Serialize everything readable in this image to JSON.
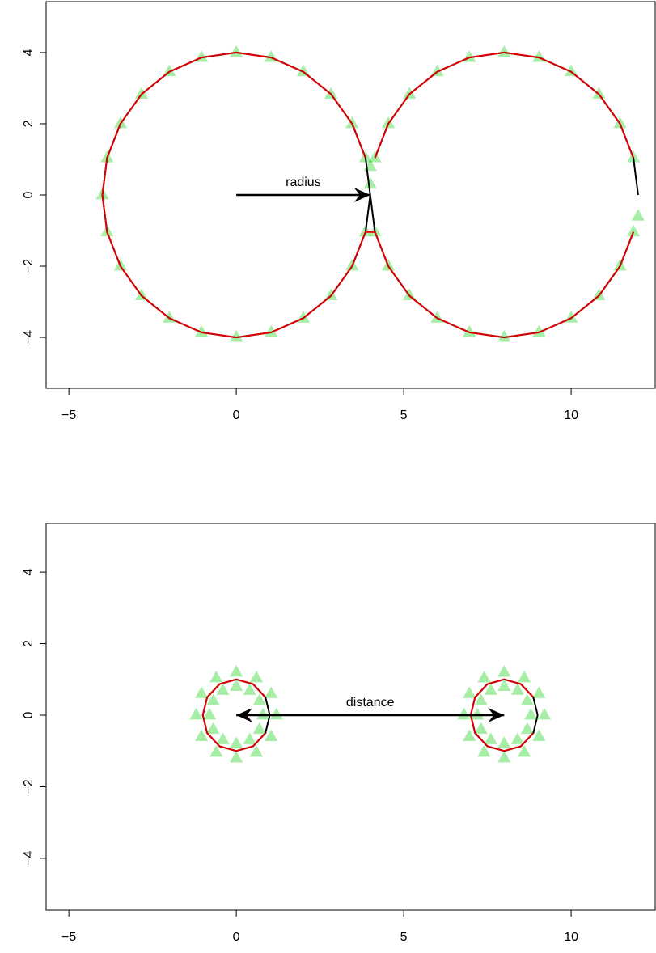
{
  "chart_data": [
    {
      "type": "scatter",
      "xlim": [
        -5.68,
        12.51
      ],
      "ylim": [
        -5.43,
        5.43
      ],
      "xticks": [
        {
          "value": -5,
          "label": "−5"
        },
        0,
        5,
        10
      ],
      "yticks": [
        {
          "value": -4,
          "label": "−4"
        },
        {
          "value": -2,
          "label": "−2"
        },
        0,
        2,
        4
      ],
      "series": [
        {
          "style": "points",
          "color": "#00cc00",
          "x": [
            4,
            3.86,
            3.46,
            2.83,
            2,
            1.04,
            0,
            -1.04,
            -2,
            -2.83,
            -3.46,
            -3.86,
            -4,
            -3.86,
            -3.46,
            -2.83,
            -2,
            -1.04,
            0,
            1.04,
            2,
            2.83,
            3.46,
            3.86,
            12,
            11.86,
            11.46,
            10.83,
            10,
            9.04,
            8,
            6.96,
            6,
            5.17,
            4.54,
            4.14,
            4,
            4.14,
            4.54,
            5.17,
            6,
            6.96,
            8,
            9.04,
            10,
            10.83,
            11.46,
            11.86
          ],
          "y": [
            0.3,
            1.04,
            2,
            2.83,
            3.46,
            3.86,
            4,
            3.86,
            3.46,
            2.83,
            2,
            1.04,
            0,
            -1.04,
            -2,
            -2.83,
            -3.46,
            -3.86,
            -4,
            -3.86,
            -3.46,
            -2.83,
            -2,
            -1.04,
            -0.6,
            1.04,
            2,
            2.83,
            3.46,
            3.86,
            4,
            3.86,
            3.46,
            2.83,
            2,
            1.04,
            0.8,
            -1.04,
            -2,
            -2.83,
            -3.46,
            -3.86,
            -4,
            -3.86,
            -3.46,
            -2.83,
            -2,
            -1.04
          ]
        },
        {
          "style": "line",
          "color": "#000000",
          "x": [
            4,
            3.86,
            3.46,
            2.83,
            2,
            1.04,
            0,
            -1.04,
            -2,
            -2.83,
            -3.46,
            -3.86,
            -4,
            -3.86,
            -3.46,
            -2.83,
            -2,
            -1.04,
            0,
            1.04,
            2,
            2.83,
            3.46,
            3.86,
            4,
            4.14,
            4.54,
            5.17,
            6,
            6.96,
            8,
            9.04,
            10,
            10.83,
            11.46,
            11.86,
            null,
            12,
            11.86,
            11.46,
            10.83,
            10,
            9.04,
            8,
            6.96,
            6,
            5.17,
            4.54,
            4.14
          ],
          "y": [
            0,
            1.04,
            2,
            2.83,
            3.46,
            3.86,
            4,
            3.86,
            3.46,
            2.83,
            2,
            1.04,
            0,
            -1.04,
            -2,
            -2.83,
            -3.46,
            -3.86,
            -4,
            -3.86,
            -3.46,
            -2.83,
            -2,
            -1.04,
            0,
            -1.04,
            -2,
            -2.83,
            -3.46,
            -3.86,
            -4,
            -3.86,
            -3.46,
            -2.83,
            -2,
            -1.04,
            null,
            0,
            1.04,
            2,
            2.83,
            3.46,
            3.86,
            4,
            3.86,
            3.46,
            2.83,
            2,
            1.04
          ]
        },
        {
          "style": "line",
          "color": "#dd0000",
          "x": [
            3.86,
            3.46,
            2.83,
            2,
            1.04,
            0,
            -1.04,
            -2,
            -2.83,
            -3.46,
            -3.86,
            -4,
            -3.86,
            -3.46,
            -2.83,
            -2,
            -1.04,
            0,
            1.04,
            2,
            2.83,
            3.46,
            3.86,
            4.14,
            4.54,
            5.17,
            6,
            6.96,
            8,
            9.04,
            10,
            10.83,
            11.46,
            11.86,
            null,
            11.86,
            11.46,
            10.83,
            10,
            9.04,
            8,
            6.96,
            6,
            5.17,
            4.54,
            4.14
          ],
          "y": [
            1.04,
            2,
            2.83,
            3.46,
            3.86,
            4,
            3.86,
            3.46,
            2.83,
            2,
            1.04,
            0,
            -1.04,
            -2,
            -2.83,
            -3.46,
            -3.86,
            -4,
            -3.86,
            -3.46,
            -2.83,
            -2,
            -1.04,
            -1.04,
            -2,
            -2.83,
            -3.46,
            -3.86,
            -4,
            -3.86,
            -3.46,
            -2.83,
            -2,
            -1.04,
            null,
            1.04,
            2,
            2.83,
            3.46,
            3.86,
            4,
            3.86,
            3.46,
            2.83,
            2,
            1.04
          ]
        }
      ],
      "annotations": [
        {
          "text": "radius",
          "from": [
            0,
            0
          ],
          "to": [
            4,
            0
          ],
          "arrow": "end"
        }
      ]
    },
    {
      "type": "scatter",
      "xlim": [
        -5.68,
        12.51
      ],
      "ylim": [
        -5.45,
        5.36
      ],
      "xticks": [
        {
          "value": -5,
          "label": "−5"
        },
        0,
        5,
        10
      ],
      "yticks": [
        {
          "value": -4,
          "label": "−4"
        },
        {
          "value": -2,
          "label": "−2"
        },
        0,
        2,
        4
      ],
      "series": [
        {
          "style": "points",
          "color": "#00cc00",
          "x": [
            0.8,
            0.69,
            0.4,
            0,
            -0.4,
            -0.69,
            -0.8,
            -0.69,
            -0.4,
            0,
            0.4,
            0.69,
            1.2,
            1.04,
            0.6,
            0,
            -0.6,
            -1.04,
            -1.2,
            -1.04,
            -0.6,
            0,
            0.6,
            1.04,
            8.8,
            8.69,
            8.4,
            8,
            7.6,
            7.31,
            7.2,
            7.31,
            7.6,
            8,
            8.4,
            8.69,
            9.2,
            9.04,
            8.6,
            8,
            7.4,
            6.96,
            6.8,
            6.96,
            7.4,
            8,
            8.6,
            9.04
          ],
          "y": [
            0,
            0.4,
            0.69,
            0.8,
            0.69,
            0.4,
            0,
            -0.4,
            -0.69,
            -0.8,
            -0.69,
            -0.4,
            0,
            0.6,
            1.04,
            1.2,
            1.04,
            0.6,
            0,
            -0.6,
            -1.04,
            -1.2,
            -1.04,
            -0.6,
            0,
            0.4,
            0.69,
            0.8,
            0.69,
            0.4,
            0,
            -0.4,
            -0.69,
            -0.8,
            -0.69,
            -0.4,
            0,
            0.6,
            1.04,
            1.2,
            1.04,
            0.6,
            0,
            -0.6,
            -1.04,
            -1.2,
            -1.04,
            -0.6
          ]
        },
        {
          "style": "line",
          "color": "#000000",
          "x": [
            1,
            0.87,
            0.5,
            0,
            -0.5,
            -0.87,
            -1,
            -0.87,
            -0.5,
            0,
            0.5,
            0.87,
            1,
            null,
            9,
            8.87,
            8.5,
            8,
            7.5,
            7.13,
            7,
            7.13,
            7.5,
            8,
            8.5,
            8.87,
            9
          ],
          "y": [
            0,
            0.5,
            0.87,
            1,
            0.87,
            0.5,
            0,
            -0.5,
            -0.87,
            -1,
            -0.87,
            -0.5,
            0,
            null,
            0,
            0.5,
            0.87,
            1,
            0.87,
            0.5,
            0,
            -0.5,
            -0.87,
            -1,
            -0.87,
            -0.5,
            0
          ]
        },
        {
          "style": "line",
          "color": "#dd0000",
          "x": [
            0.87,
            0.5,
            0,
            -0.5,
            -0.87,
            -1,
            -0.87,
            -0.5,
            0,
            0.5,
            0.87,
            null,
            8.87,
            8.5,
            8,
            7.5,
            7.13,
            7,
            7.13,
            7.5,
            8,
            8.5,
            8.87
          ],
          "y": [
            0.5,
            0.87,
            1,
            0.87,
            0.5,
            0,
            -0.5,
            -0.87,
            -1,
            -0.87,
            -0.5,
            null,
            0.5,
            0.87,
            1,
            0.87,
            0.5,
            0,
            -0.5,
            -0.87,
            -1,
            -0.87,
            -0.5
          ]
        }
      ],
      "annotations": [
        {
          "text": "distance",
          "from": [
            0,
            0
          ],
          "to": [
            8,
            0
          ],
          "arrow": "both"
        }
      ]
    }
  ]
}
